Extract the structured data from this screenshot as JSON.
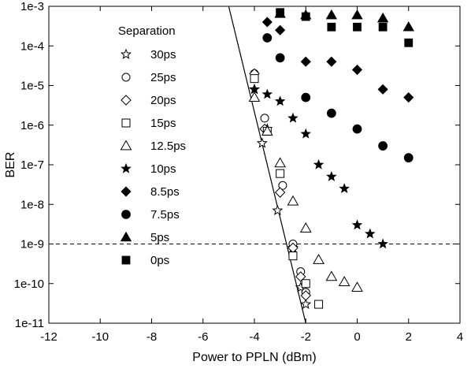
{
  "chart_data": {
    "type": "scatter",
    "xlabel": "Power to PPLN (dBm)",
    "ylabel": "BER",
    "xlim": [
      -12,
      4
    ],
    "ylim": [
      1e-11,
      0.001
    ],
    "yscale": "log",
    "grid": false,
    "x_ticks": [
      "-12",
      "-10",
      "-8",
      "-6",
      "-4",
      "-2",
      "0",
      "2",
      "4"
    ],
    "y_ticks": [
      "1e-11",
      "1e-10",
      "1e-9",
      "1e-8",
      "1e-7",
      "1e-6",
      "1e-5",
      "1e-4",
      "1e-3"
    ],
    "legend": {
      "title": "Separation",
      "placement": "left"
    },
    "series": [
      {
        "name": "30ps",
        "marker": "star-open",
        "x": [
          -4.0,
          -3.7,
          -3.5,
          -3.1,
          -2.5,
          -2.2,
          -2.0
        ],
        "y": [
          8e-06,
          3.5e-07,
          8e-07,
          7e-09,
          8e-10,
          8e-11,
          3e-11
        ]
      },
      {
        "name": "25ps",
        "marker": "circle-open",
        "x": [
          -4.0,
          -3.6,
          -2.9,
          -2.5,
          -2.2,
          -2.0
        ],
        "y": [
          2e-05,
          1.5e-06,
          3e-08,
          1e-09,
          2e-10,
          6e-11
        ]
      },
      {
        "name": "20ps",
        "marker": "diamond-open",
        "x": [
          -4.0,
          -3.6,
          -3.0,
          -2.5,
          -2.2,
          -2.0
        ],
        "y": [
          2e-05,
          8e-07,
          2e-08,
          8e-10,
          1.5e-10,
          5e-11
        ]
      },
      {
        "name": "15ps",
        "marker": "square-open",
        "x": [
          -4.0,
          -3.5,
          -3.0,
          -2.5,
          -2.0,
          -1.5
        ],
        "y": [
          1.5e-05,
          7e-07,
          6e-08,
          5e-10,
          1e-10,
          3e-11
        ]
      },
      {
        "name": "12.5ps",
        "marker": "triangle-open",
        "x": [
          -4.0,
          -3.5,
          -3.0,
          -2.5,
          -2.0,
          -1.5,
          -1.0,
          -0.5,
          0.0
        ],
        "y": [
          5e-06,
          7e-07,
          1.1e-07,
          1.2e-08,
          2.5e-09,
          4e-10,
          1.5e-10,
          1.1e-10,
          8e-11
        ]
      },
      {
        "name": "10ps",
        "marker": "star",
        "x": [
          -4.0,
          -3.5,
          -3.0,
          -2.5,
          -2.0,
          -1.5,
          -1.0,
          -0.5,
          0.0,
          0.5,
          1.0
        ],
        "y": [
          8e-06,
          6e-06,
          4e-06,
          1.5e-06,
          6e-07,
          1e-07,
          5e-08,
          2.5e-08,
          3e-09,
          1.8e-09,
          1e-09
        ]
      },
      {
        "name": "8.5ps",
        "marker": "diamond",
        "x": [
          -3.5,
          -3.0,
          -2.0,
          -1.0,
          0.0,
          1.0,
          2.0
        ],
        "y": [
          0.0004,
          0.00025,
          4e-05,
          4e-05,
          2.5e-05,
          8e-06,
          5e-06
        ]
      },
      {
        "name": "7.5ps",
        "marker": "circle",
        "x": [
          -3.5,
          -3.0,
          -2.0,
          -1.0,
          0.0,
          1.0,
          2.0
        ],
        "y": [
          0.00016,
          5e-05,
          5e-06,
          2e-06,
          8e-07,
          3e-07,
          1.5e-07
        ]
      },
      {
        "name": "5ps",
        "marker": "triangle",
        "x": [
          -3.0,
          -2.0,
          -1.0,
          0.0,
          1.0,
          2.0
        ],
        "y": [
          0.00065,
          0.0006,
          0.0006,
          0.0006,
          0.0005,
          0.0003
        ]
      },
      {
        "name": "0ps",
        "marker": "square",
        "x": [
          -3.0,
          -2.0,
          -1.0,
          0.0,
          1.0,
          2.0
        ],
        "y": [
          0.0007,
          0.00055,
          0.0003,
          0.0003,
          0.0003,
          0.00012
        ]
      }
    ],
    "reference_lines": [
      {
        "kind": "horizontal",
        "style": "dashed",
        "y": 1e-09
      },
      {
        "kind": "solid-fit",
        "style": "solid",
        "x": [
          -5.0,
          -2.0
        ],
        "y": [
          0.001,
          1e-11
        ]
      }
    ]
  }
}
